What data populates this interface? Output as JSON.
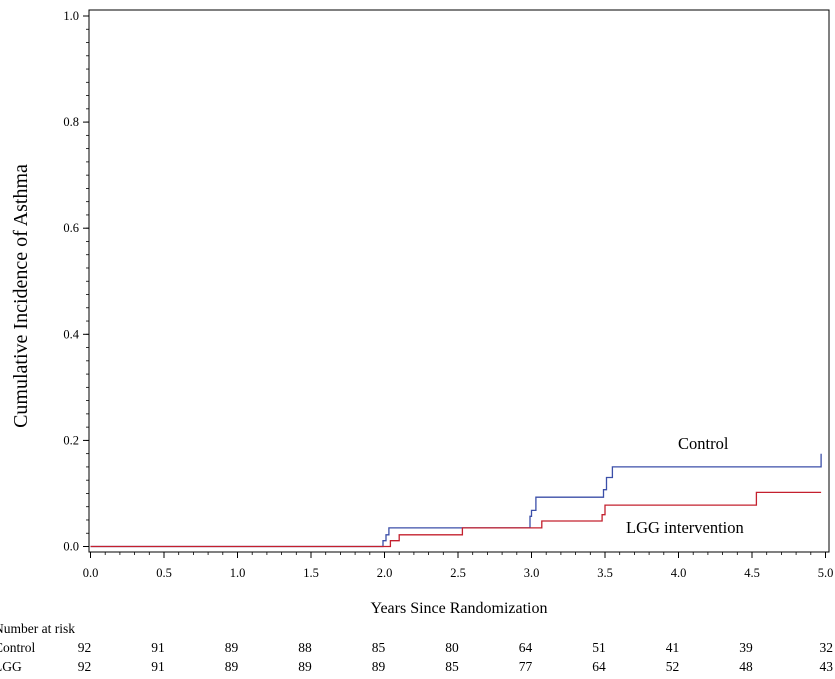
{
  "chart_data": {
    "type": "line",
    "title": "",
    "xlabel": "Years Since Randomization",
    "ylabel": "Cumulative Incidence of Asthma",
    "xlim": [
      0,
      5
    ],
    "ylim": [
      0,
      1
    ],
    "x_ticks": [
      "0.0",
      "0.5",
      "1.0",
      "1.5",
      "2.0",
      "2.5",
      "3.0",
      "3.5",
      "4.0",
      "4.5",
      "5.0"
    ],
    "y_ticks": [
      "0.0",
      "0.2",
      "0.4",
      "0.6",
      "0.8",
      "1.0"
    ],
    "grid": false,
    "step": true,
    "series": [
      {
        "name": "Control",
        "color": "#3b4fa8",
        "points": [
          [
            0,
            0
          ],
          [
            1.99,
            0
          ],
          [
            1.99,
            0.011
          ],
          [
            2.01,
            0.011
          ],
          [
            2.01,
            0.022
          ],
          [
            2.03,
            0.022
          ],
          [
            2.03,
            0.035
          ],
          [
            2.99,
            0.035
          ],
          [
            2.99,
            0.057
          ],
          [
            3.0,
            0.057
          ],
          [
            3.0,
            0.068
          ],
          [
            3.03,
            0.068
          ],
          [
            3.03,
            0.093
          ],
          [
            3.49,
            0.093
          ],
          [
            3.49,
            0.107
          ],
          [
            3.51,
            0.107
          ],
          [
            3.51,
            0.13
          ],
          [
            3.55,
            0.13
          ],
          [
            3.55,
            0.15
          ],
          [
            4.97,
            0.15
          ],
          [
            4.97,
            0.175
          ]
        ]
      },
      {
        "name": "LGG intervention",
        "color": "#c4202e",
        "points": [
          [
            0,
            0
          ],
          [
            2.04,
            0
          ],
          [
            2.04,
            0.011
          ],
          [
            2.1,
            0.011
          ],
          [
            2.1,
            0.022
          ],
          [
            2.53,
            0.022
          ],
          [
            2.53,
            0.035
          ],
          [
            3.07,
            0.035
          ],
          [
            3.07,
            0.048
          ],
          [
            3.48,
            0.048
          ],
          [
            3.48,
            0.06
          ],
          [
            3.5,
            0.06
          ],
          [
            3.5,
            0.078
          ],
          [
            4.53,
            0.078
          ],
          [
            4.53,
            0.102
          ],
          [
            4.97,
            0.102
          ]
        ]
      }
    ],
    "number_at_risk": {
      "title": "Number at risk",
      "rows": [
        {
          "label": "Control",
          "values": [
            "92",
            "91",
            "89",
            "88",
            "85",
            "80",
            "64",
            "51",
            "41",
            "39",
            "32"
          ]
        },
        {
          "label": "LGG",
          "values": [
            "92",
            "91",
            "89",
            "89",
            "89",
            "85",
            "77",
            "64",
            "52",
            "48",
            "43"
          ]
        }
      ]
    }
  }
}
